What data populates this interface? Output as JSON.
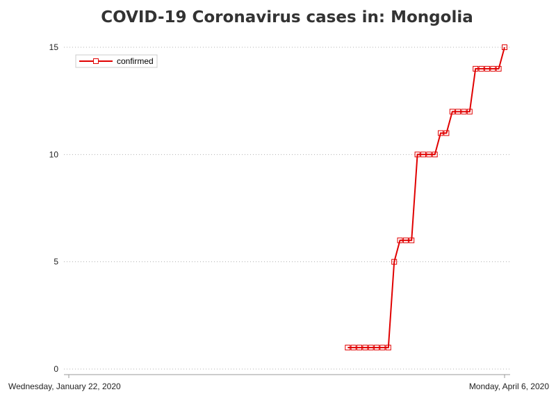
{
  "chart_data": {
    "type": "line",
    "title": "COVID-19 Coronavirus cases in: Mongolia",
    "xlabel": "",
    "ylabel": "",
    "x_start": "2020-01-22",
    "x_end": "2020-04-06",
    "x_tick_labels": [
      "Wednesday, January 22, 2020",
      "Monday, April 6, 2020"
    ],
    "y_ticks": [
      0,
      5,
      10,
      15
    ],
    "ylim": [
      0,
      15
    ],
    "grid": true,
    "legend_position": "top-left",
    "colors": {
      "series": "#e00000",
      "grid": "#b0b0b0",
      "axis": "#999999",
      "title": "#333333"
    },
    "series": [
      {
        "name": "confirmed",
        "marker": "square",
        "x": [
          "2020-03-10",
          "2020-03-11",
          "2020-03-12",
          "2020-03-13",
          "2020-03-14",
          "2020-03-15",
          "2020-03-16",
          "2020-03-17",
          "2020-03-18",
          "2020-03-19",
          "2020-03-20",
          "2020-03-21",
          "2020-03-22",
          "2020-03-23",
          "2020-03-24",
          "2020-03-25",
          "2020-03-26",
          "2020-03-27",
          "2020-03-28",
          "2020-03-29",
          "2020-03-30",
          "2020-03-31",
          "2020-04-01",
          "2020-04-02",
          "2020-04-03",
          "2020-04-04",
          "2020-04-05",
          "2020-04-06"
        ],
        "y": [
          1,
          1,
          1,
          1,
          1,
          1,
          1,
          1,
          5,
          6,
          6,
          6,
          10,
          10,
          10,
          10,
          11,
          11,
          12,
          12,
          12,
          12,
          14,
          14,
          14,
          14,
          14,
          15
        ]
      }
    ]
  }
}
